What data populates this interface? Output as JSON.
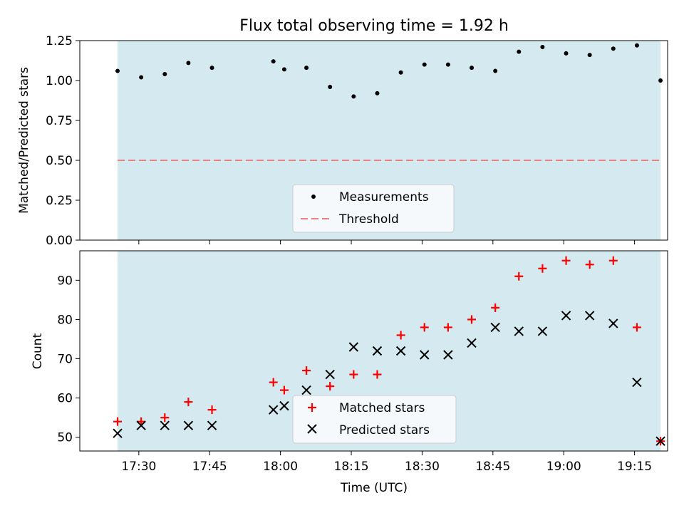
{
  "chart_data": [
    {
      "type": "scatter",
      "title": "Flux total observing time = 1.92 h",
      "ylabel": "Matched/Predicted stars",
      "xlabel": "",
      "xlim_minutes": [
        1037.5,
        1162.0
      ],
      "ylim": [
        0,
        1.25
      ],
      "yticks": [
        0.0,
        0.25,
        0.5,
        0.75,
        1.0,
        1.25
      ],
      "ytick_labels": [
        "0.00",
        "0.25",
        "0.50",
        "0.75",
        "1.00",
        "1.25"
      ],
      "observing_window_minutes": [
        1045.5,
        1160.5
      ],
      "series": [
        {
          "name": "Measurements",
          "x_minutes": [
            1045.5,
            1050.5,
            1055.5,
            1060.5,
            1065.5,
            1078.5,
            1080.8,
            1085.5,
            1090.5,
            1095.5,
            1100.5,
            1105.5,
            1110.5,
            1115.5,
            1120.5,
            1125.5,
            1130.5,
            1135.5,
            1140.5,
            1145.5,
            1150.5,
            1155.5,
            1160.5
          ],
          "values": [
            1.06,
            1.02,
            1.04,
            1.11,
            1.08,
            1.12,
            1.07,
            1.08,
            0.96,
            0.9,
            0.92,
            1.05,
            1.1,
            1.1,
            1.08,
            1.06,
            1.18,
            1.21,
            1.17,
            1.16,
            1.2,
            1.22,
            1.0
          ],
          "color": "#000000"
        }
      ],
      "threshold": {
        "name": "Threshold",
        "value": 0.5,
        "color": "#f08080"
      },
      "legend": {
        "position": "bottom-center",
        "entries": [
          "Measurements",
          "Threshold"
        ]
      }
    },
    {
      "type": "scatter",
      "title": "",
      "ylabel": "Count",
      "xlabel": "Time (UTC)",
      "xlim_minutes": [
        1037.5,
        1162.0
      ],
      "ylim": [
        46.5,
        97.5
      ],
      "yticks": [
        50,
        60,
        70,
        80,
        90
      ],
      "ytick_labels": [
        "50",
        "60",
        "70",
        "80",
        "90"
      ],
      "xticks_minutes": [
        1050,
        1065,
        1080,
        1095,
        1110,
        1125,
        1140,
        1155
      ],
      "xtick_labels": [
        "17:30",
        "17:45",
        "18:00",
        "18:15",
        "18:30",
        "18:45",
        "19:00",
        "19:15"
      ],
      "observing_window_minutes": [
        1045.5,
        1160.5
      ],
      "series": [
        {
          "name": "Matched stars",
          "marker": "+",
          "color": "#ff0000",
          "x_minutes": [
            1045.5,
            1050.5,
            1055.5,
            1060.5,
            1065.5,
            1078.5,
            1080.8,
            1085.5,
            1090.5,
            1095.5,
            1100.5,
            1105.5,
            1110.5,
            1115.5,
            1120.5,
            1125.5,
            1130.5,
            1135.5,
            1140.5,
            1145.5,
            1150.5,
            1155.5,
            1160.5
          ],
          "values": [
            54,
            54,
            55,
            59,
            57,
            64,
            62,
            67,
            63,
            66,
            66,
            76,
            78,
            78,
            80,
            83,
            91,
            93,
            95,
            94,
            95,
            78,
            49
          ]
        },
        {
          "name": "Predicted stars",
          "marker": "x",
          "color": "#000000",
          "x_minutes": [
            1045.5,
            1050.5,
            1055.5,
            1060.5,
            1065.5,
            1078.5,
            1080.8,
            1085.5,
            1090.5,
            1095.5,
            1100.5,
            1105.5,
            1110.5,
            1115.5,
            1120.5,
            1125.5,
            1130.5,
            1135.5,
            1140.5,
            1145.5,
            1150.5,
            1155.5,
            1160.5
          ],
          "values": [
            51,
            53,
            53,
            53,
            53,
            57,
            58,
            62,
            66,
            73,
            72,
            72,
            71,
            71,
            74,
            78,
            77,
            77,
            81,
            81,
            79,
            64,
            49
          ]
        }
      ],
      "legend": {
        "position": "bottom-center",
        "entries": [
          "Matched stars",
          "Predicted stars"
        ]
      }
    }
  ],
  "colors": {
    "band": "#d4eaf0",
    "legend_bg": "#f5f9fb",
    "threshold": "#f08080"
  }
}
